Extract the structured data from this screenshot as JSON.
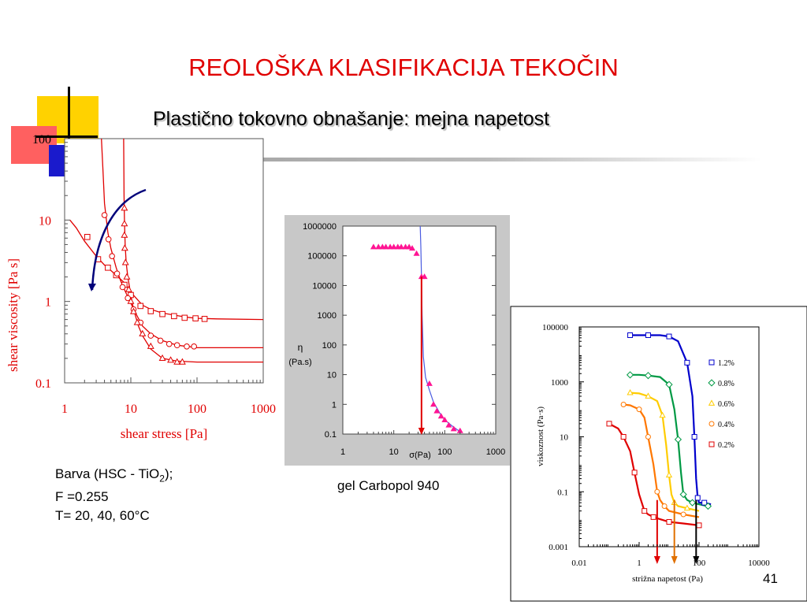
{
  "title": "REOLOŠKA KLASIFIKACIJA TEKOČIN",
  "subtitle": "Plastično tokovno obnašanje: mejna napetost",
  "page_number": "41",
  "caption1": {
    "line1_pre": "Barva (HSC - TiO",
    "line1_sub": "2",
    "line1_post": ");",
    "line2": "F =0.255",
    "line3": "T= 20, 40, 60°C"
  },
  "caption2": "gel Carbopol 940",
  "colors": {
    "title": "#e00000",
    "red": "#e00000",
    "navy": "#00007a",
    "magenta": "#ff1493",
    "blue_line": "#4a5be0"
  },
  "chart_data": [
    {
      "type": "scatter",
      "title": "",
      "xlabel": "shear stress [Pa]",
      "ylabel": "shear viscosity [Pa s]",
      "xscale": "log",
      "yscale": "log",
      "xlim": [
        1,
        1000
      ],
      "ylim": [
        0.1,
        100
      ],
      "xticks": [
        "1",
        "10",
        "100",
        "1000"
      ],
      "yticks": [
        "0.1",
        "1",
        "10",
        "100"
      ],
      "series": [
        {
          "name": "squares",
          "marker": "square",
          "x": [
            2.2,
            3.2,
            4.5,
            6,
            8,
            10,
            14,
            20,
            30,
            45,
            65,
            95,
            130
          ],
          "y": [
            6.2,
            3.3,
            2.6,
            2.1,
            1.6,
            1.2,
            0.88,
            0.76,
            0.7,
            0.66,
            0.63,
            0.62,
            0.61
          ],
          "curve_x": [
            1.2,
            1.5,
            2,
            3,
            4,
            5,
            6,
            8,
            10,
            12,
            15,
            20,
            30,
            50,
            70,
            100,
            200,
            1000
          ],
          "curve_y": [
            10,
            8,
            5.5,
            3.6,
            2.8,
            2.4,
            2.1,
            1.7,
            1.3,
            1.1,
            0.9,
            0.8,
            0.72,
            0.67,
            0.64,
            0.62,
            0.61,
            0.6
          ]
        },
        {
          "name": "circles",
          "marker": "circle",
          "x": [
            4,
            4.6,
            5.2,
            6.2,
            7.5,
            9,
            11,
            14,
            20,
            28,
            38,
            50,
            70,
            90
          ],
          "y": [
            11.5,
            5.8,
            3.6,
            2.2,
            1.5,
            1.1,
            0.8,
            0.55,
            0.38,
            0.33,
            0.3,
            0.29,
            0.28,
            0.28
          ],
          "curve_x": [
            3.6,
            3.8,
            4,
            4.5,
            5,
            6,
            7,
            8,
            10,
            12,
            15,
            20,
            30,
            50,
            100,
            1000
          ],
          "curve_y": [
            100,
            40,
            16,
            7,
            4.5,
            2.6,
            1.8,
            1.4,
            0.95,
            0.7,
            0.5,
            0.4,
            0.33,
            0.29,
            0.27,
            0.27
          ]
        },
        {
          "name": "triangles",
          "marker": "triangle",
          "x": [
            8,
            8,
            8,
            8.1,
            8.3,
            8.7,
            9.3,
            10,
            11,
            12.5,
            15,
            20,
            30,
            40,
            50,
            60
          ],
          "y": [
            14,
            9,
            6.5,
            4.5,
            3,
            2,
            1.4,
            1,
            0.75,
            0.55,
            0.4,
            0.28,
            0.2,
            0.19,
            0.18,
            0.18
          ],
          "curve_x": [
            7.8,
            7.85,
            7.9,
            8,
            8.2,
            8.5,
            9,
            10,
            11,
            13,
            15,
            20,
            30,
            50,
            100,
            1000
          ],
          "curve_y": [
            100,
            40,
            20,
            10,
            5,
            3,
            2,
            1.2,
            0.8,
            0.5,
            0.38,
            0.26,
            0.2,
            0.185,
            0.18,
            0.18
          ]
        }
      ],
      "annotation": "curved arrow indicating decreasing viscosity with increasing stress"
    },
    {
      "type": "scatter",
      "title": "",
      "xlabel": "σ(Pa)",
      "ylabel_line1": "η",
      "ylabel_line2": "(Pa.s)",
      "xscale": "log",
      "yscale": "log",
      "xlim": [
        1,
        1000
      ],
      "ylim": [
        0.1,
        1000000
      ],
      "xticks": [
        "1",
        "10",
        "100",
        "1000"
      ],
      "yticks": [
        "0.1",
        "1",
        "10",
        "100",
        "1000",
        "10000",
        "100000",
        "1000000"
      ],
      "series": [
        {
          "name": "Carbopol 940",
          "marker": "triangle",
          "x": [
            4,
            5,
            6,
            7,
            8.5,
            10,
            12,
            14,
            17,
            20,
            23,
            28,
            35,
            40,
            50,
            60,
            70,
            85,
            100,
            120,
            150,
            200
          ],
          "y": [
            200000,
            200000,
            200000,
            200000,
            200000,
            200000,
            200000,
            200000,
            200000,
            200000,
            180000,
            120000,
            20000,
            20000,
            5,
            1,
            0.6,
            0.4,
            0.3,
            0.2,
            0.15,
            0.13
          ],
          "fit_x": [
            33,
            34,
            35,
            36,
            38,
            42,
            50,
            60,
            80,
            100,
            150,
            200
          ],
          "fit_y": [
            1000000,
            200000,
            20000,
            1000,
            40,
            8,
            3,
            1.2,
            0.5,
            0.3,
            0.17,
            0.12
          ]
        }
      ],
      "yield_stress_marker_x": 35
    },
    {
      "type": "line",
      "title": "",
      "xlabel": "strižna napetost (Pa)",
      "ylabel": "viskoznost (Pa·s)",
      "xscale": "log",
      "yscale": "log",
      "xlim": [
        0.01,
        10000
      ],
      "ylim": [
        0.001,
        100000
      ],
      "xticks": [
        "0.01",
        "1",
        "100",
        "10000"
      ],
      "yticks": [
        "0.001",
        "0.1",
        "10",
        "1000",
        "100000"
      ],
      "series": [
        {
          "name": "1.2%",
          "color": "#0000cc",
          "marker": "square",
          "x": [
            0.5,
            1,
            2,
            5,
            10,
            20,
            40,
            60,
            70,
            80,
            90,
            100,
            150,
            250
          ],
          "y": [
            50000,
            50000,
            50000,
            50000,
            45000,
            30000,
            5000,
            300,
            10,
            0.3,
            0.06,
            0.04,
            0.04,
            0.035
          ]
        },
        {
          "name": "0.8%",
          "color": "#009944",
          "marker": "diamond",
          "x": [
            0.5,
            1,
            2,
            5,
            10,
            15,
            20,
            25,
            30,
            40,
            60,
            100,
            200
          ],
          "y": [
            1800,
            1800,
            1700,
            1500,
            800,
            100,
            8,
            0.5,
            0.08,
            0.05,
            0.04,
            0.035,
            0.03
          ]
        },
        {
          "name": "0.6%",
          "color": "#ffcc00",
          "marker": "triangle",
          "x": [
            0.5,
            1,
            2,
            4,
            6,
            8,
            10,
            12,
            15,
            20,
            40,
            100
          ],
          "y": [
            400,
            380,
            300,
            200,
            60,
            5,
            0.4,
            0.08,
            0.04,
            0.03,
            0.025,
            0.02
          ]
        },
        {
          "name": "0.4%",
          "color": "#ff7700",
          "marker": "circle",
          "x": [
            0.3,
            0.5,
            1,
            1.5,
            2,
            3,
            4,
            5,
            7,
            10,
            30,
            100
          ],
          "y": [
            150,
            140,
            100,
            50,
            10,
            1,
            0.1,
            0.05,
            0.03,
            0.02,
            0.015,
            0.012
          ]
        },
        {
          "name": "0.2%",
          "color": "#e00000",
          "marker": "square",
          "x": [
            0.1,
            0.2,
            0.3,
            0.5,
            0.7,
            1,
            1.5,
            2,
            3,
            5,
            10,
            30,
            100
          ],
          "y": [
            30,
            20,
            10,
            3,
            0.5,
            0.08,
            0.02,
            0.015,
            0.012,
            0.01,
            0.008,
            0.007,
            0.006
          ]
        }
      ],
      "arrows_x": [
        {
          "x": 4,
          "color": "#e00000"
        },
        {
          "x": 15,
          "color": "#e07000"
        },
        {
          "x": 80,
          "color": "#000000"
        }
      ]
    }
  ]
}
